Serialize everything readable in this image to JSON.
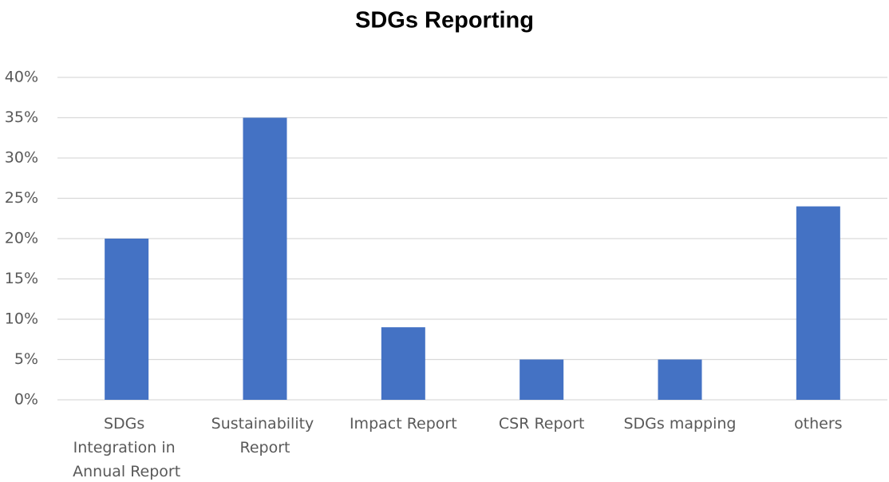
{
  "chart_data": {
    "type": "bar",
    "title": "SDGs Reporting",
    "categories": [
      "SDGs Integration in Annual Report",
      "Sustainability Report",
      "Impact Report",
      "CSR Report",
      "SDGs mapping",
      "others"
    ],
    "values": [
      20,
      35,
      9,
      5,
      5,
      24
    ],
    "color": "#4472c4",
    "ylim": [
      0,
      40
    ],
    "yticks": [
      {
        "value": 0,
        "label": "0%"
      },
      {
        "value": 5,
        "label": "5%"
      },
      {
        "value": 10,
        "label": "10%"
      },
      {
        "value": 15,
        "label": "15%"
      },
      {
        "value": 20,
        "label": "20%"
      },
      {
        "value": 25,
        "label": "25%"
      },
      {
        "value": 30,
        "label": "30%"
      },
      {
        "value": 35,
        "label": "35%"
      },
      {
        "value": 40,
        "label": "40%"
      }
    ],
    "grid": true
  }
}
